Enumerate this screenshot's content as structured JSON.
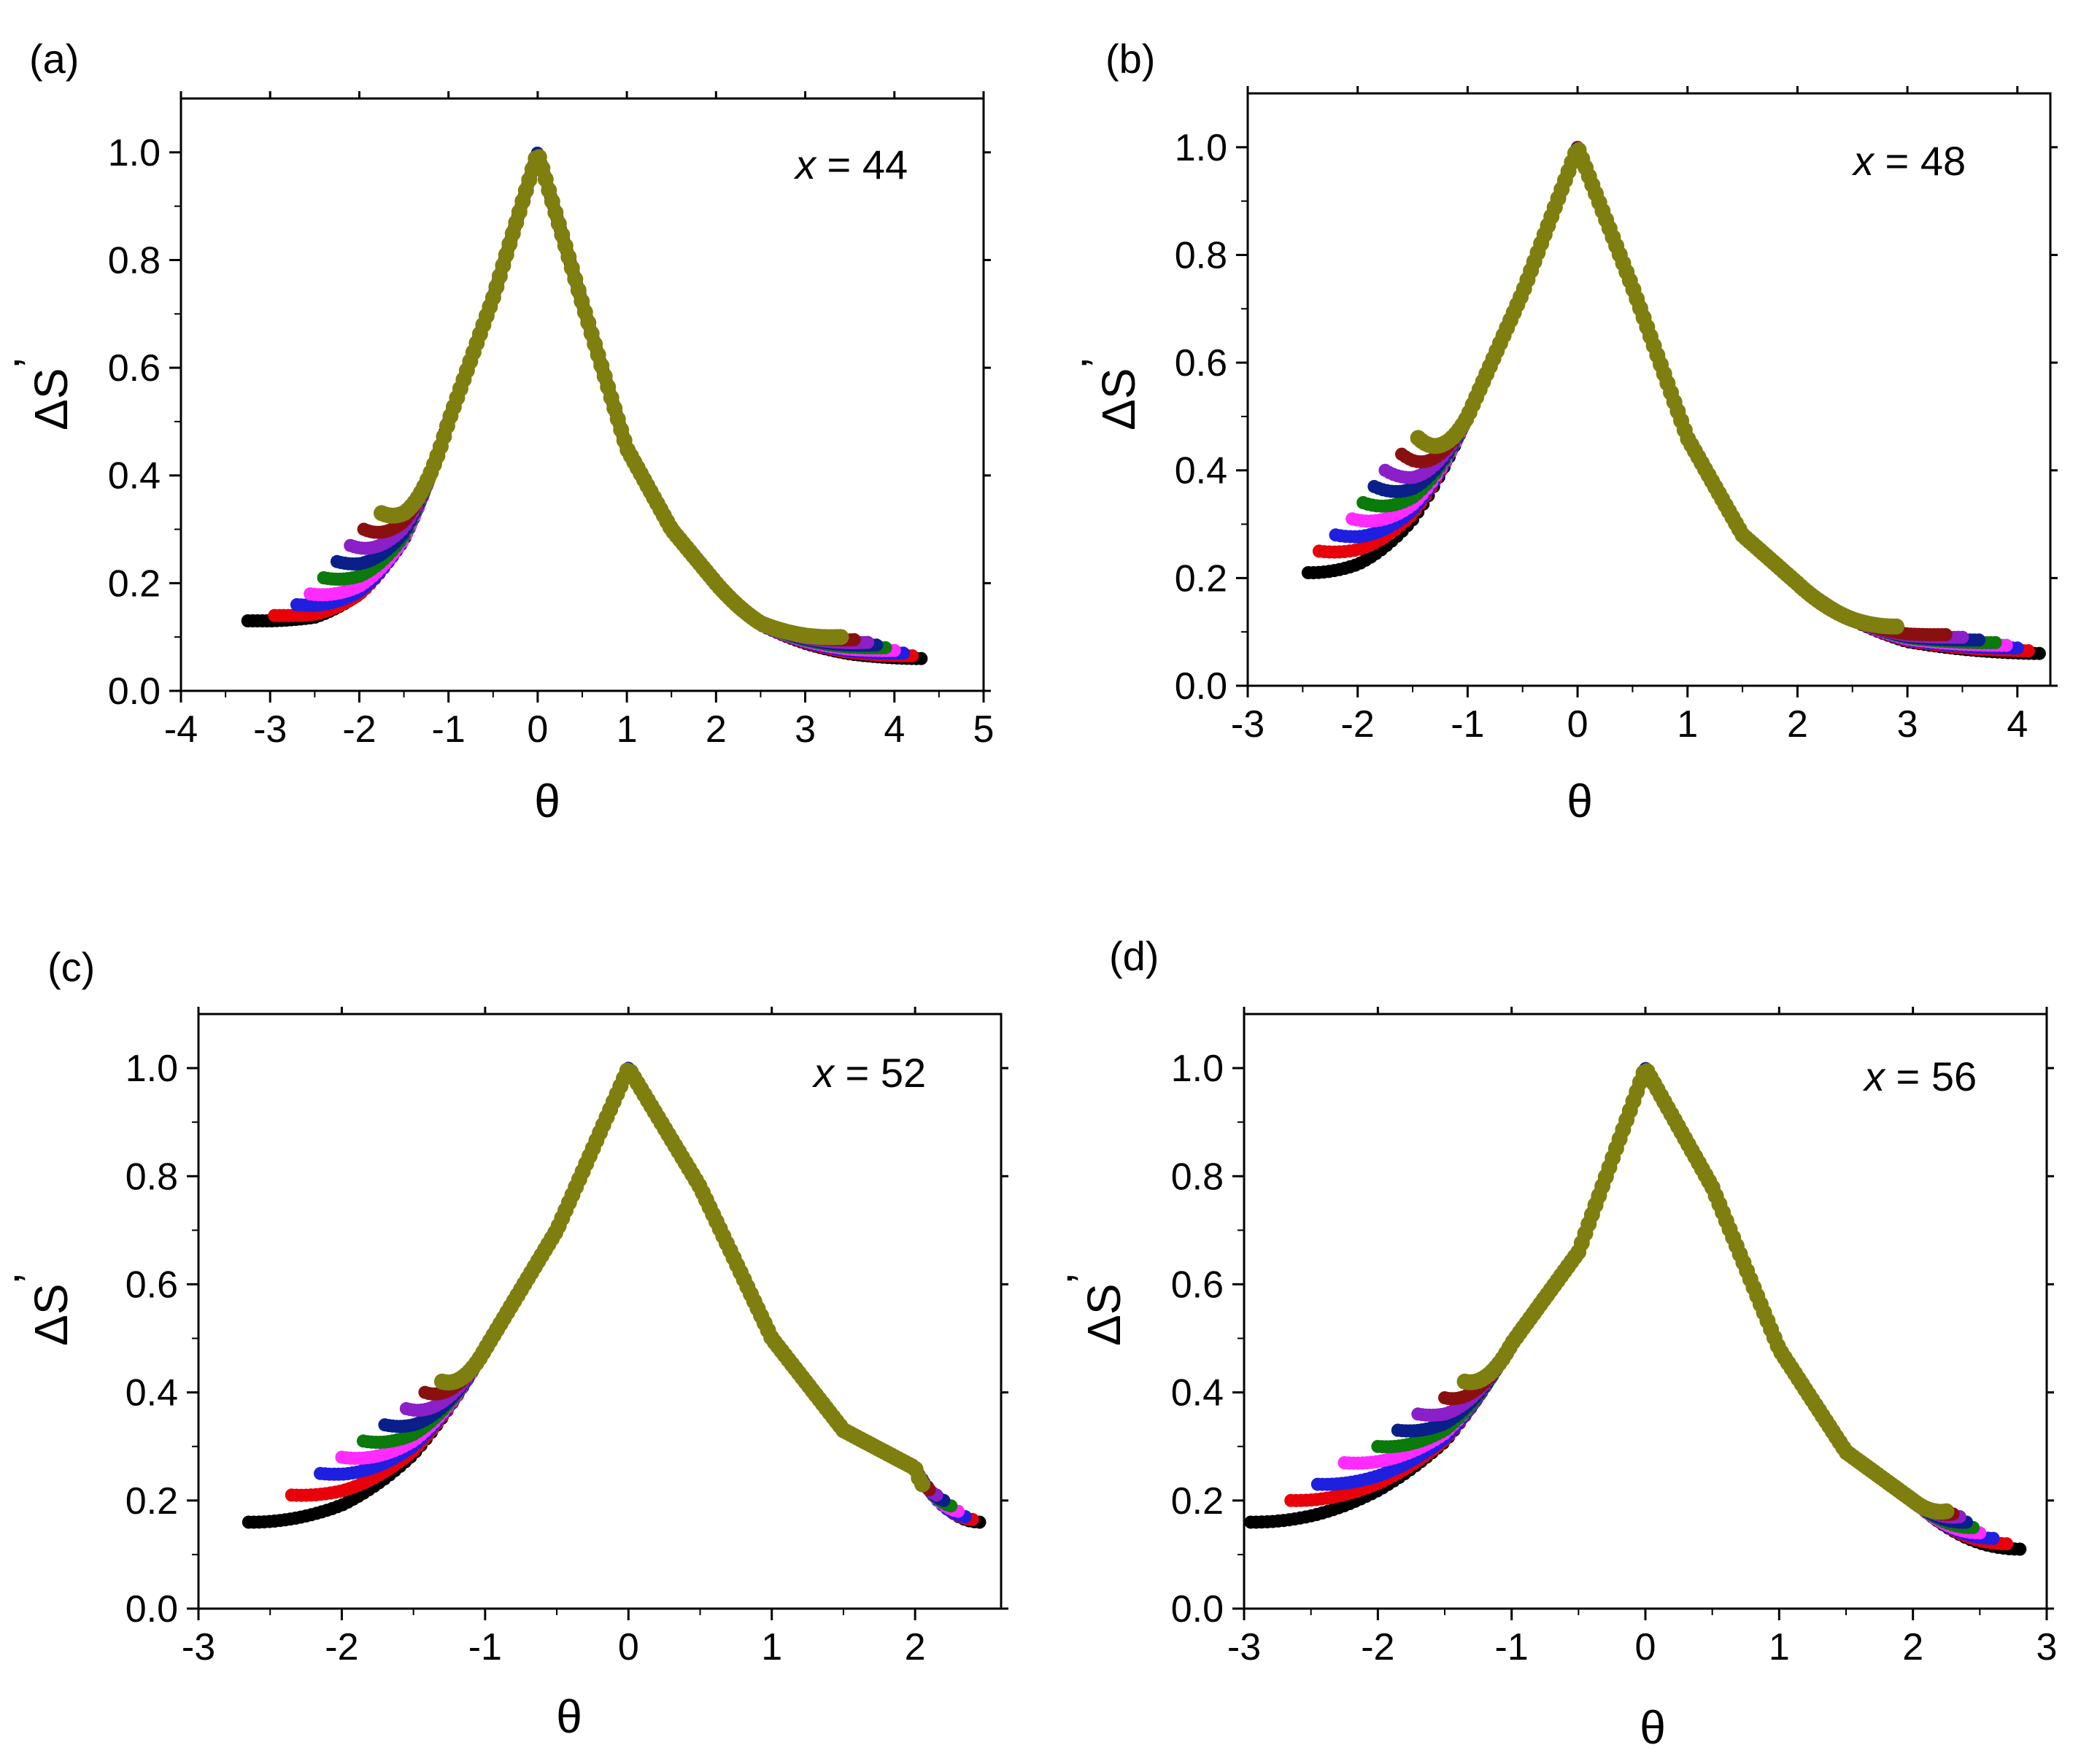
{
  "figure": {
    "series_colors": [
      "#000000",
      "#e8000b",
      "#1f1fe0",
      "#ff2bff",
      "#0a7a0a",
      "#0a1f8a",
      "#8b1fc8",
      "#8a1010",
      "#7f7f10"
    ]
  },
  "chart_data": [
    {
      "type": "scatter",
      "panel": "(a)",
      "title": "",
      "annotation": {
        "prefix": "x",
        "text": " = 44"
      },
      "xlabel": "θ",
      "ylabel": "ΔS'",
      "ylabel_main": "ΔS",
      "ylabel_prime": "’",
      "xlim": [
        -4,
        5
      ],
      "ylim": [
        0,
        1.1
      ],
      "xticks": [
        -4,
        -3,
        -2,
        -1,
        0,
        1,
        2,
        3,
        4,
        5
      ],
      "xtick_labels": [
        "-4",
        "-3",
        "-2",
        "-1",
        "0",
        "1",
        "2",
        "3",
        "4",
        "5"
      ],
      "yticks": [
        0,
        0.2,
        0.4,
        0.6,
        0.8,
        1.0
      ],
      "ytick_labels": [
        "0.0",
        "0.2",
        "0.4",
        "0.6",
        "0.8",
        "1.0"
      ],
      "left_start_points": [
        [
          -3.25,
          0.13
        ],
        [
          -2.95,
          0.14
        ],
        [
          -2.7,
          0.16
        ],
        [
          -2.55,
          0.18
        ],
        [
          -2.4,
          0.21
        ],
        [
          -2.25,
          0.24
        ],
        [
          -2.1,
          0.27
        ],
        [
          -1.95,
          0.3
        ],
        [
          -1.75,
          0.33
        ]
      ],
      "right_end_points": [
        4.3,
        4.2,
        4.1,
        4.0,
        3.9,
        3.8,
        3.7,
        3.55,
        3.4
      ],
      "right_end_y": [
        0.06,
        0.065,
        0.07,
        0.075,
        0.08,
        0.085,
        0.09,
        0.095,
        0.1
      ],
      "peak_y": 1.0,
      "shoulder_points": [
        [
          -3.0,
          0.13
        ],
        [
          -2.5,
          0.15
        ],
        [
          -2.0,
          0.22
        ],
        [
          -1.5,
          0.33
        ],
        [
          -1.0,
          0.5
        ],
        [
          -0.5,
          0.73
        ],
        [
          0,
          1.0
        ],
        [
          0.5,
          0.72
        ],
        [
          1.0,
          0.45
        ],
        [
          1.5,
          0.3
        ],
        [
          2.0,
          0.2
        ],
        [
          2.5,
          0.14
        ],
        [
          3.0,
          0.11
        ],
        [
          3.5,
          0.085
        ],
        [
          4.0,
          0.07
        ],
        [
          4.3,
          0.06
        ]
      ]
    },
    {
      "type": "scatter",
      "panel": "(b)",
      "title": "",
      "annotation": {
        "prefix": "x",
        "text": " = 48"
      },
      "xlabel": "θ",
      "ylabel": "ΔS'",
      "ylabel_main": "ΔS",
      "ylabel_prime": "’",
      "xlim": [
        -3,
        4.3
      ],
      "ylim": [
        0,
        1.1
      ],
      "xticks": [
        -3,
        -2,
        -1,
        0,
        1,
        2,
        3,
        4
      ],
      "xtick_labels": [
        "-3",
        "-2",
        "-1",
        "0",
        "1",
        "2",
        "3",
        "4"
      ],
      "yticks": [
        0,
        0.2,
        0.4,
        0.6,
        0.8,
        1.0
      ],
      "ytick_labels": [
        "0.0",
        "0.2",
        "0.4",
        "0.6",
        "0.8",
        "1.0"
      ],
      "left_start_points": [
        [
          -2.45,
          0.21
        ],
        [
          -2.35,
          0.25
        ],
        [
          -2.2,
          0.28
        ],
        [
          -2.05,
          0.31
        ],
        [
          -1.95,
          0.34
        ],
        [
          -1.85,
          0.37
        ],
        [
          -1.75,
          0.4
        ],
        [
          -1.6,
          0.43
        ],
        [
          -1.45,
          0.46
        ]
      ],
      "right_end_points": [
        4.2,
        4.1,
        4.0,
        3.9,
        3.8,
        3.65,
        3.5,
        3.35,
        2.9
      ],
      "right_end_y": [
        0.06,
        0.065,
        0.07,
        0.075,
        0.08,
        0.085,
        0.09,
        0.095,
        0.11
      ],
      "peak_y": 1.0,
      "shoulder_points": [
        [
          -2.4,
          0.21
        ],
        [
          -2.0,
          0.26
        ],
        [
          -1.5,
          0.36
        ],
        [
          -1.0,
          0.5
        ],
        [
          -0.5,
          0.73
        ],
        [
          0,
          1.0
        ],
        [
          0.5,
          0.74
        ],
        [
          1.0,
          0.46
        ],
        [
          1.5,
          0.28
        ],
        [
          2.0,
          0.19
        ],
        [
          2.5,
          0.14
        ],
        [
          3.0,
          0.1
        ],
        [
          3.5,
          0.085
        ],
        [
          4.0,
          0.07
        ],
        [
          4.2,
          0.06
        ]
      ]
    },
    {
      "type": "scatter",
      "panel": "(c)",
      "title": "",
      "annotation": {
        "prefix": "x",
        "text": " = 52"
      },
      "xlabel": "θ",
      "ylabel": "ΔS'",
      "ylabel_main": "ΔS",
      "ylabel_prime": "’",
      "xlim": [
        -3,
        2.6
      ],
      "ylim": [
        0,
        1.1
      ],
      "xticks": [
        -3,
        -2,
        -1,
        0,
        1,
        2
      ],
      "xtick_labels": [
        "-3",
        "-2",
        "-1",
        "0",
        "1",
        "2"
      ],
      "yticks": [
        0,
        0.2,
        0.4,
        0.6,
        0.8,
        1.0
      ],
      "ytick_labels": [
        "0.0",
        "0.2",
        "0.4",
        "0.6",
        "0.8",
        "1.0"
      ],
      "left_start_points": [
        [
          -2.65,
          0.16
        ],
        [
          -2.35,
          0.21
        ],
        [
          -2.15,
          0.25
        ],
        [
          -2.0,
          0.28
        ],
        [
          -1.85,
          0.31
        ],
        [
          -1.7,
          0.34
        ],
        [
          -1.55,
          0.37
        ],
        [
          -1.42,
          0.4
        ],
        [
          -1.3,
          0.42
        ]
      ],
      "right_end_points": [
        2.45,
        2.4,
        2.35,
        2.3,
        2.25,
        2.2,
        2.15,
        2.1,
        2.05
      ],
      "right_end_y": [
        0.16,
        0.165,
        0.17,
        0.18,
        0.19,
        0.2,
        0.21,
        0.22,
        0.23
      ],
      "peak_y": 1.0,
      "shoulder_points": [
        [
          -2.6,
          0.16
        ],
        [
          -2.0,
          0.24
        ],
        [
          -1.5,
          0.34
        ],
        [
          -1.0,
          0.48
        ],
        [
          -0.5,
          0.7
        ],
        [
          0,
          1.0
        ],
        [
          0.5,
          0.78
        ],
        [
          1.0,
          0.5
        ],
        [
          1.5,
          0.33
        ],
        [
          2.0,
          0.26
        ],
        [
          2.4,
          0.17
        ]
      ]
    },
    {
      "type": "scatter",
      "panel": "(d)",
      "title": "",
      "annotation": {
        "prefix": "x",
        "text": " = 56"
      },
      "xlabel": "θ",
      "ylabel": "ΔS'",
      "ylabel_main": "ΔS",
      "ylabel_prime": "’",
      "xlim": [
        -3,
        3
      ],
      "ylim": [
        0,
        1.1
      ],
      "xticks": [
        -3,
        -2,
        -1,
        0,
        1,
        2,
        3
      ],
      "xtick_labels": [
        "-3",
        "-2",
        "-1",
        "0",
        "1",
        "2",
        "3"
      ],
      "yticks": [
        0,
        0.2,
        0.4,
        0.6,
        0.8,
        1.0
      ],
      "ytick_labels": [
        "0.0",
        "0.2",
        "0.4",
        "0.6",
        "0.8",
        "1.0"
      ],
      "left_start_points": [
        [
          -2.95,
          0.16
        ],
        [
          -2.65,
          0.2
        ],
        [
          -2.45,
          0.23
        ],
        [
          -2.25,
          0.27
        ],
        [
          -2.0,
          0.3
        ],
        [
          -1.85,
          0.33
        ],
        [
          -1.7,
          0.36
        ],
        [
          -1.5,
          0.39
        ],
        [
          -1.35,
          0.42
        ]
      ],
      "right_end_points": [
        2.8,
        2.7,
        2.6,
        2.5,
        2.45,
        2.4,
        2.35,
        2.3,
        2.25
      ],
      "right_end_y": [
        0.11,
        0.12,
        0.13,
        0.14,
        0.15,
        0.16,
        0.17,
        0.175,
        0.18
      ],
      "peak_y": 1.0,
      "shoulder_points": [
        [
          -2.9,
          0.16
        ],
        [
          -2.5,
          0.21
        ],
        [
          -2.0,
          0.28
        ],
        [
          -1.5,
          0.36
        ],
        [
          -1.0,
          0.49
        ],
        [
          -0.5,
          0.66
        ],
        [
          0,
          1.0
        ],
        [
          0.5,
          0.78
        ],
        [
          1.0,
          0.48
        ],
        [
          1.5,
          0.29
        ],
        [
          2.0,
          0.2
        ],
        [
          2.5,
          0.14
        ],
        [
          2.8,
          0.11
        ]
      ]
    }
  ]
}
